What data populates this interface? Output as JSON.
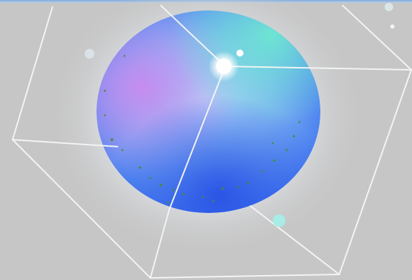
{
  "scene": {
    "description_kind": "3d-render",
    "background_color": "#c6c6c6",
    "top_strip_color": "#8fb3de",
    "orb_colors": {
      "center": "#9fc9f5",
      "top_right": "#6fe4d2",
      "left": "#c48cf0",
      "bottom": "#2f62ea",
      "glow": "#e8eef6"
    },
    "line_color": "#f4f4f4",
    "light_color": "#ffffff",
    "marker_color": "#9fe8e4",
    "speckle_color": "#4f8a2a"
  }
}
